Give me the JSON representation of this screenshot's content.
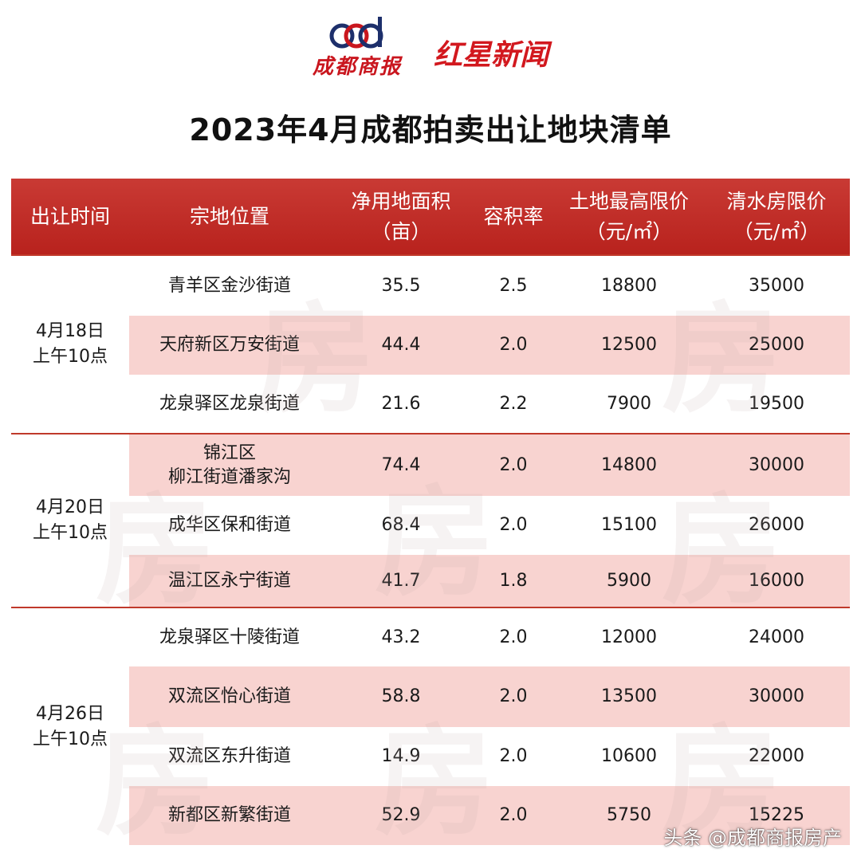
{
  "logos": {
    "logo_a_text": "成都商报",
    "logo_b_text": "红星新闻"
  },
  "title": "2023年4月成都拍卖出让地块清单",
  "table": {
    "headers": [
      [
        "出让时间"
      ],
      [
        "宗地位置"
      ],
      [
        "净用地面积",
        "（亩）"
      ],
      [
        "容积率"
      ],
      [
        "土地最高限价",
        "（元/㎡）"
      ],
      [
        "清水房限价",
        "（元/㎡）"
      ]
    ],
    "groups": [
      {
        "time": [
          "4月18日",
          "上午10点"
        ],
        "rows": [
          {
            "location": [
              "青羊区金沙街道"
            ],
            "area": "35.5",
            "far": "2.5",
            "land_price": "18800",
            "house_price": "35000"
          },
          {
            "location": [
              "天府新区万安街道"
            ],
            "area": "44.4",
            "far": "2.0",
            "land_price": "12500",
            "house_price": "25000"
          },
          {
            "location": [
              "龙泉驿区龙泉街道"
            ],
            "area": "21.6",
            "far": "2.2",
            "land_price": "7900",
            "house_price": "19500"
          }
        ]
      },
      {
        "time": [
          "4月20日",
          "上午10点"
        ],
        "rows": [
          {
            "location": [
              "锦江区",
              "柳江街道潘家沟"
            ],
            "area": "74.4",
            "far": "2.0",
            "land_price": "14800",
            "house_price": "30000"
          },
          {
            "location": [
              "成华区保和街道"
            ],
            "area": "68.4",
            "far": "2.0",
            "land_price": "15100",
            "house_price": "26000"
          },
          {
            "location": [
              "温江区永宁街道"
            ],
            "area": "41.7",
            "far": "1.8",
            "land_price": "5900",
            "house_price": "16000"
          }
        ]
      },
      {
        "time": [
          "4月26日",
          "上午10点"
        ],
        "rows": [
          {
            "location": [
              "龙泉驿区十陵街道"
            ],
            "area": "43.2",
            "far": "2.0",
            "land_price": "12000",
            "house_price": "24000"
          },
          {
            "location": [
              "双流区怡心街道"
            ],
            "area": "58.8",
            "far": "2.0",
            "land_price": "13500",
            "house_price": "30000"
          },
          {
            "location": [
              "双流区东升街道"
            ],
            "area": "14.9",
            "far": "2.0",
            "land_price": "10600",
            "house_price": "22000"
          },
          {
            "location": [
              "新都区新繁街道"
            ],
            "area": "52.9",
            "far": "2.0",
            "land_price": "5750",
            "house_price": "15225"
          }
        ]
      }
    ]
  },
  "footer": "头条 @成都商报房产",
  "colors": {
    "header_red": "#b8221d",
    "stripe_pink": "#f8d3d0",
    "logo_red": "#c9161e",
    "logo_navy": "#1d2f6b"
  }
}
